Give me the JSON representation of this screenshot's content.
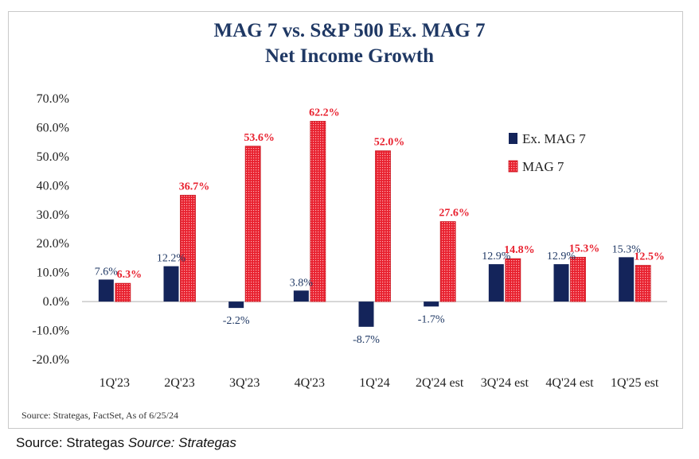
{
  "chart_data": {
    "type": "bar",
    "title": "MAG 7 vs. S&P 500 Ex. MAG 7",
    "subtitle": "Net Income Growth",
    "categories": [
      "1Q'23",
      "2Q'23",
      "3Q'23",
      "4Q'23",
      "1Q'24",
      "2Q'24 est",
      "3Q'24 est",
      "4Q'24 est",
      "1Q'25 est"
    ],
    "series": [
      {
        "name": "Ex. MAG 7",
        "color": "#14245a",
        "values": [
          7.6,
          12.2,
          -2.2,
          3.8,
          -8.7,
          -1.7,
          12.9,
          12.9,
          15.3
        ],
        "labels": [
          "7.6%",
          "12.2%",
          "-2.2%",
          "3.8%",
          "-8.7%",
          "-1.7%",
          "12.9%",
          "12.9%",
          "15.3%"
        ]
      },
      {
        "name": "MAG 7",
        "color": "#e8212f",
        "values": [
          6.3,
          36.7,
          53.6,
          62.2,
          52.0,
          27.6,
          14.8,
          15.3,
          12.5
        ],
        "labels": [
          "6.3%",
          "36.7%",
          "53.6%",
          "62.2%",
          "52.0%",
          "27.6%",
          "14.8%",
          "15.3%",
          "12.5%"
        ]
      }
    ],
    "ylim": [
      -20,
      70
    ],
    "yticks": [
      70,
      60,
      50,
      40,
      30,
      20,
      10,
      0,
      -10,
      -20
    ],
    "ytick_labels": [
      "70.0%",
      "60.0%",
      "50.0%",
      "40.0%",
      "30.0%",
      "20.0%",
      "10.0%",
      "0.0%",
      "-10.0%",
      "-20.0%"
    ],
    "grid": false,
    "legend_position": "right"
  },
  "source_inner": "Source: Strategas, FactSet, As of 6/25/24",
  "source_outer_prefix": "Source: Strategas",
  "source_outer_italic": "Source: Strategas"
}
